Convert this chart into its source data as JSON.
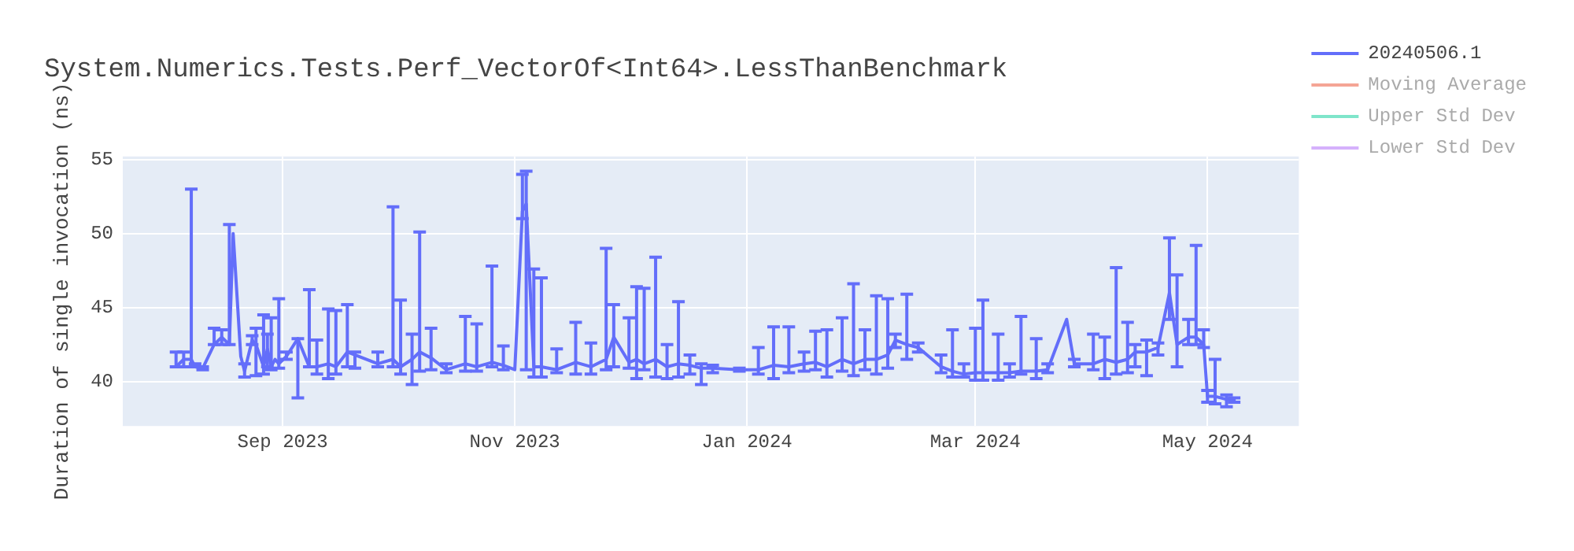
{
  "chart_data": {
    "type": "line",
    "title": "System.Numerics.Tests.Perf_VectorOf<Int64>.LessThanBenchmark",
    "ylabel": "Duration of single invocation (ns)",
    "x": [
      "2023-08-04",
      "2023-08-06",
      "2023-08-08",
      "2023-08-09",
      "2023-08-11",
      "2023-08-14",
      "2023-08-16",
      "2023-08-18",
      "2023-08-19",
      "2023-08-21",
      "2023-08-22",
      "2023-08-24",
      "2023-08-25",
      "2023-08-27",
      "2023-08-28",
      "2023-08-29",
      "2023-08-30",
      "2023-08-31",
      "2023-09-02",
      "2023-09-05",
      "2023-09-08",
      "2023-09-10",
      "2023-09-13",
      "2023-09-15",
      "2023-09-18",
      "2023-09-20",
      "2023-09-26",
      "2023-09-30",
      "2023-10-02",
      "2023-10-05",
      "2023-10-07",
      "2023-10-10",
      "2023-10-14",
      "2023-10-19",
      "2023-10-22",
      "2023-10-26",
      "2023-10-29",
      "2023-11-01",
      "2023-11-03",
      "2023-11-04",
      "2023-11-06",
      "2023-11-08",
      "2023-11-12",
      "2023-11-17",
      "2023-11-21",
      "2023-11-25",
      "2023-11-27",
      "2023-12-01",
      "2023-12-03",
      "2023-12-05",
      "2023-12-08",
      "2023-12-11",
      "2023-12-14",
      "2023-12-17",
      "2023-12-20",
      "2023-12-23",
      "2023-12-30",
      "2024-01-04",
      "2024-01-08",
      "2024-01-12",
      "2024-01-16",
      "2024-01-19",
      "2024-01-22",
      "2024-01-26",
      "2024-01-29",
      "2024-02-01",
      "2024-02-04",
      "2024-02-07",
      "2024-02-09",
      "2024-02-12",
      "2024-02-15",
      "2024-02-21",
      "2024-02-24",
      "2024-02-27",
      "2024-03-01",
      "2024-03-03",
      "2024-03-07",
      "2024-03-10",
      "2024-03-13",
      "2024-03-17",
      "2024-03-20",
      "2024-03-25",
      "2024-03-27",
      "2024-04-01",
      "2024-04-04",
      "2024-04-07",
      "2024-04-10",
      "2024-04-12",
      "2024-04-15",
      "2024-04-18",
      "2024-04-21",
      "2024-04-23",
      "2024-04-26",
      "2024-04-28",
      "2024-04-30",
      "2024-05-01",
      "2024-05-03",
      "2024-05-06",
      "2024-05-08"
    ],
    "series": [
      {
        "name": "20240506.1",
        "color": "#636efa",
        "values": [
          41,
          41.5,
          41.5,
          41,
          40.9,
          42.5,
          43,
          42.5,
          50,
          41.7,
          40.7,
          42.8,
          42.5,
          41,
          42.2,
          41,
          41.5,
          41.2,
          41.7,
          42.9,
          41,
          41,
          41.2,
          41,
          42,
          41.8,
          41.2,
          41.5,
          41,
          41.5,
          42,
          41.6,
          40.8,
          41.2,
          41,
          41.3,
          41.1,
          40.8,
          51.5,
          52,
          41,
          41,
          40.8,
          41.3,
          41,
          41.5,
          43,
          41.3,
          41.5,
          41.2,
          41.5,
          41,
          41.2,
          41.1,
          40.9,
          40.9,
          40.8,
          40.8,
          41.1,
          41,
          41.2,
          41.3,
          41,
          41.5,
          41.2,
          41.5,
          41.5,
          41.8,
          42.8,
          42.5,
          42.3,
          41,
          40.7,
          40.5,
          40.6,
          40.6,
          40.6,
          40.6,
          40.7,
          40.7,
          40.8,
          44.2,
          41.2,
          41.2,
          41.5,
          41.3,
          41.5,
          42,
          42,
          42.3,
          46,
          42.5,
          43,
          43,
          42.5,
          39,
          39,
          38.8,
          38.8
        ],
        "errors": [
          [
            41,
            42
          ],
          [
            41,
            42
          ],
          [
            41,
            53
          ],
          [
            41,
            41.2
          ],
          [
            40.8,
            41
          ],
          [
            42.5,
            43.6
          ],
          [
            42.5,
            43.5
          ],
          [
            42.5,
            50.6
          ],
          null,
          null,
          [
            40.3,
            41.2
          ],
          [
            42.5,
            43.1
          ],
          [
            40.4,
            43.6
          ],
          [
            40.5,
            44.5
          ],
          [
            41,
            43.2
          ],
          [
            40.8,
            44.3
          ],
          null,
          [
            40.9,
            45.6
          ],
          [
            41.5,
            42
          ],
          [
            38.9,
            42.9
          ],
          [
            41,
            46.2
          ],
          [
            40.5,
            42.8
          ],
          [
            40.2,
            44.9
          ],
          [
            40.5,
            44.8
          ],
          [
            41,
            45.2
          ],
          [
            40.9,
            42
          ],
          [
            41,
            42
          ],
          [
            41,
            51.8
          ],
          [
            40.5,
            45.5
          ],
          [
            39.8,
            43.2
          ],
          [
            40.7,
            50.1
          ],
          [
            40.8,
            43.6
          ],
          [
            40.6,
            41.2
          ],
          [
            40.7,
            44.4
          ],
          [
            40.7,
            43.9
          ],
          [
            41,
            47.8
          ],
          [
            40.8,
            42.4
          ],
          null,
          [
            51,
            54
          ],
          [
            40.8,
            54.2
          ],
          [
            40.3,
            47.6
          ],
          [
            40.3,
            47
          ],
          [
            40.6,
            42.2
          ],
          [
            40.5,
            44
          ],
          [
            40.5,
            42.6
          ],
          [
            40.8,
            49
          ],
          [
            41,
            45.2
          ],
          [
            40.9,
            44.3
          ],
          [
            40.2,
            46.4
          ],
          [
            40.8,
            46.3
          ],
          [
            40.3,
            48.4
          ],
          [
            40.2,
            42.5
          ],
          [
            40.3,
            45.4
          ],
          [
            40.5,
            41.8
          ],
          [
            39.8,
            41.2
          ],
          [
            40.6,
            41.1
          ],
          [
            40.7,
            40.9
          ],
          [
            40.5,
            42.3
          ],
          [
            40.2,
            43.7
          ],
          [
            40.6,
            43.7
          ],
          [
            40.7,
            42
          ],
          [
            40.8,
            43.4
          ],
          [
            40.3,
            43.5
          ],
          [
            40.7,
            44.3
          ],
          [
            40.4,
            46.6
          ],
          [
            40.8,
            43.5
          ],
          [
            40.5,
            45.8
          ],
          [
            40.9,
            45.6
          ],
          [
            42.3,
            43.2
          ],
          [
            41.5,
            45.9
          ],
          [
            42,
            42.6
          ],
          [
            40.6,
            41.8
          ],
          [
            40.3,
            43.5
          ],
          [
            40.3,
            41.2
          ],
          [
            40.1,
            43.6
          ],
          [
            40.1,
            45.5
          ],
          [
            40.1,
            43.2
          ],
          [
            40.3,
            41.2
          ],
          [
            40.5,
            44.4
          ],
          [
            40.2,
            42.9
          ],
          [
            40.6,
            41.2
          ],
          null,
          [
            41,
            41.5
          ],
          [
            40.8,
            43.2
          ],
          [
            40.2,
            43
          ],
          [
            40.5,
            47.7
          ],
          [
            40.6,
            44
          ],
          [
            41,
            42.5
          ],
          [
            40.4,
            42.8
          ],
          [
            41.8,
            42.6
          ],
          [
            44.2,
            49.7
          ],
          [
            41,
            47.2
          ],
          [
            42.5,
            44.2
          ],
          [
            42.5,
            49.2
          ],
          [
            42.3,
            43.5
          ],
          [
            38.6,
            39.4
          ],
          [
            38.5,
            41.5
          ],
          [
            38.3,
            39.1
          ],
          [
            38.6,
            38.9
          ]
        ]
      },
      {
        "name": "Moving Average",
        "color": "#f5a595",
        "values": [
          null,
          null,
          null,
          null,
          null,
          null,
          null,
          null,
          null,
          null,
          null,
          null,
          null,
          null,
          null,
          null,
          null,
          null,
          null,
          null,
          null,
          null,
          null,
          null,
          null,
          null,
          null,
          null,
          null,
          null,
          null,
          null,
          null,
          null,
          null,
          null,
          null,
          null,
          null,
          null,
          null,
          null,
          null,
          null,
          null,
          null,
          null,
          null,
          null,
          null,
          null,
          null,
          null,
          null,
          null,
          null,
          null,
          null,
          null,
          null,
          null,
          null,
          null,
          null,
          null,
          null,
          null,
          null,
          null,
          null,
          null,
          null,
          null,
          null,
          null,
          null,
          null,
          null,
          null,
          null,
          null,
          null,
          null,
          null,
          null,
          null,
          null,
          null,
          null,
          null,
          null,
          null,
          null,
          null,
          null,
          null,
          null,
          null,
          null
        ]
      },
      {
        "name": "Upper Std Dev",
        "color": "#7fe5ca",
        "values": [
          null,
          null,
          null,
          null,
          null,
          null,
          null,
          null,
          null,
          null,
          null,
          null,
          null,
          null,
          null,
          null,
          null,
          null,
          null,
          null,
          null,
          null,
          null,
          null,
          null,
          null,
          null,
          null,
          null,
          null,
          null,
          null,
          null,
          null,
          null,
          null,
          null,
          null,
          null,
          null,
          null,
          null,
          null,
          null,
          null,
          null,
          null,
          null,
          null,
          null,
          null,
          null,
          null,
          null,
          null,
          null,
          null,
          null,
          null,
          null,
          null,
          null,
          null,
          null,
          null,
          null,
          null,
          null,
          null,
          null,
          null,
          null,
          null,
          null,
          null,
          null,
          null,
          null,
          null,
          null,
          null,
          null,
          null,
          null,
          null,
          null,
          null,
          null,
          null,
          null,
          null,
          null,
          null,
          null,
          null,
          null,
          null,
          null,
          null
        ]
      },
      {
        "name": "Lower Std Dev",
        "color": "#d5b1fc",
        "values": [
          null,
          null,
          null,
          null,
          null,
          null,
          null,
          null,
          null,
          null,
          null,
          null,
          null,
          null,
          null,
          null,
          null,
          null,
          null,
          null,
          null,
          null,
          null,
          null,
          null,
          null,
          null,
          null,
          null,
          null,
          null,
          null,
          null,
          null,
          null,
          null,
          null,
          null,
          null,
          null,
          null,
          null,
          null,
          null,
          null,
          null,
          null,
          null,
          null,
          null,
          null,
          null,
          null,
          null,
          null,
          null,
          null,
          null,
          null,
          null,
          null,
          null,
          null,
          null,
          null,
          null,
          null,
          null,
          null,
          null,
          null,
          null,
          null,
          null,
          null,
          null,
          null,
          null,
          null,
          null,
          null,
          null,
          null,
          null,
          null,
          null,
          null,
          null,
          null,
          null,
          null,
          null,
          null,
          null,
          null,
          null,
          null,
          null,
          null
        ]
      }
    ],
    "xlim": [
      "2023-07-21",
      "2024-05-25"
    ],
    "xticks": [
      {
        "value": "2023-09-01",
        "label": "Sep 2023"
      },
      {
        "value": "2023-11-01",
        "label": "Nov 2023"
      },
      {
        "value": "2024-01-01",
        "label": "Jan 2024"
      },
      {
        "value": "2024-03-01",
        "label": "Mar 2024"
      },
      {
        "value": "2024-05-01",
        "label": "May 2024"
      }
    ],
    "ylim": [
      37,
      55.2
    ],
    "yticks": [
      40,
      45,
      50,
      55
    ],
    "grid": true,
    "legend": "top right"
  }
}
